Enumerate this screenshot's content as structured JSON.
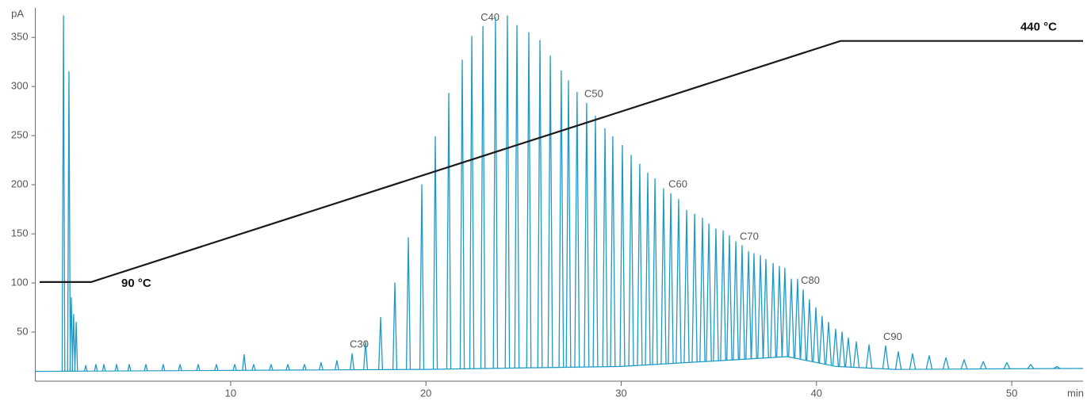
{
  "chart_data": {
    "type": "line",
    "y_label": "pA",
    "x_label": "min",
    "xlim": [
      0,
      53.65
    ],
    "ylim": [
      0,
      380
    ],
    "y2lim": [
      -54,
      488
    ],
    "xticks": [
      10,
      20,
      30,
      40,
      50
    ],
    "yticks": [
      50,
      100,
      150,
      200,
      250,
      300,
      350
    ],
    "series": [
      {
        "style": "baseline",
        "color": "#1d9ac7",
        "x": [
          0,
          20,
          30,
          36,
          38.5,
          41,
          44,
          53.65
        ],
        "values": [
          10,
          12,
          15,
          22,
          25,
          15,
          12,
          13
        ]
      },
      {
        "style": "peaks",
        "color": "#1d9ac7",
        "x": [
          1.44,
          1.72,
          1.84,
          1.96,
          2.09,
          2.58,
          3.1,
          3.51,
          4.16,
          4.81,
          5.66,
          6.55,
          7.41,
          8.34,
          9.27,
          10.21,
          10.69,
          11.18,
          12.07,
          12.93,
          13.78,
          14.63,
          15.44,
          16.22,
          16.91,
          17.68,
          18.41,
          19.1,
          19.79,
          20.48,
          21.17,
          21.86,
          22.35,
          22.92,
          23.56,
          24.17,
          24.66,
          25.27,
          25.84,
          26.37,
          26.93,
          27.3,
          27.74,
          28.23,
          28.68,
          29.17,
          29.57,
          30.06,
          30.51,
          30.95,
          31.36,
          31.73,
          32.17,
          32.54,
          32.94,
          33.35,
          33.76,
          34.16,
          34.49,
          34.85,
          35.22,
          35.54,
          35.87,
          36.19,
          36.52,
          36.8,
          37.13,
          37.41,
          37.78,
          38.1,
          38.38,
          38.71,
          39.03,
          39.32,
          39.64,
          39.97,
          40.29,
          40.62,
          40.98,
          41.31,
          41.63,
          42.04,
          42.69,
          43.54,
          44.19,
          44.92,
          45.77,
          46.63,
          47.56,
          48.54,
          49.75,
          50.97,
          52.31
        ],
        "values": [
          372,
          315,
          85,
          68,
          60,
          16,
          17,
          17,
          17,
          17,
          17,
          17,
          17,
          17,
          17,
          17,
          27,
          17,
          17,
          17,
          17,
          19,
          21,
          28,
          40,
          65,
          100,
          146,
          200,
          249,
          293,
          327,
          351,
          361,
          370,
          372,
          362,
          355,
          347,
          331,
          316,
          306,
          294,
          283,
          270,
          257,
          249,
          240,
          230,
          221,
          212,
          206,
          196,
          191,
          185,
          174,
          170,
          166,
          160,
          155,
          153,
          148,
          142,
          138,
          132,
          130,
          128,
          124,
          120,
          117,
          115,
          104,
          104,
          93,
          83,
          75,
          66,
          60,
          53,
          50,
          44,
          40,
          37,
          36,
          30,
          28,
          26,
          24,
          22,
          20,
          19,
          17,
          15
        ],
        "peak_labels": [
          null,
          null,
          null,
          null,
          null,
          null,
          null,
          null,
          null,
          null,
          null,
          null,
          null,
          null,
          null,
          null,
          null,
          null,
          null,
          null,
          null,
          null,
          null,
          "C30",
          null,
          null,
          null,
          null,
          null,
          null,
          null,
          null,
          null,
          "C40",
          null,
          null,
          null,
          null,
          null,
          null,
          null,
          null,
          null,
          "C50",
          null,
          null,
          null,
          null,
          null,
          null,
          null,
          null,
          null,
          "C60",
          null,
          null,
          null,
          null,
          null,
          null,
          null,
          null,
          null,
          "C70",
          null,
          null,
          null,
          null,
          null,
          null,
          null,
          null,
          null,
          "C80",
          null,
          null,
          null,
          null,
          null,
          null,
          null,
          null,
          null,
          "C90",
          null,
          null,
          null,
          null,
          null,
          null,
          null,
          null,
          null
        ]
      },
      {
        "style": "line",
        "axis": "y2",
        "color": "#1a1a1a",
        "x": [
          0.22,
          2.86,
          41.23,
          53.65
        ],
        "values": [
          90,
          90,
          440,
          440
        ],
        "value_labels": [
          null,
          "90 °C",
          null,
          "440 °C"
        ]
      }
    ]
  }
}
